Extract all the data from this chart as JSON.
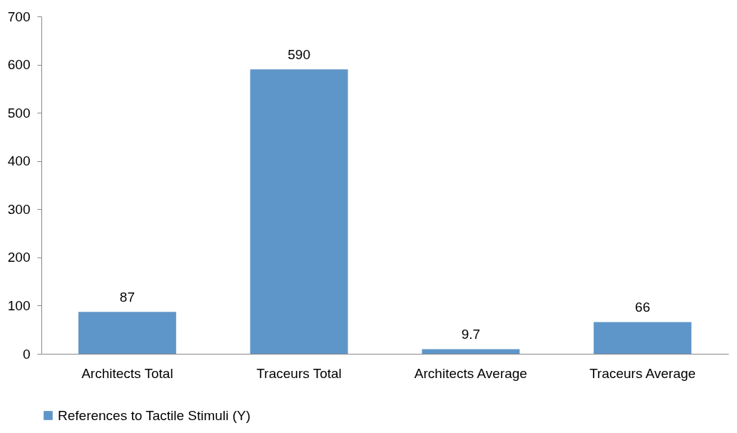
{
  "chart_data": {
    "type": "bar",
    "categories": [
      "Architects Total",
      "Traceurs Total",
      "Architects Average",
      "Traceurs Average"
    ],
    "series": [
      {
        "name": "References to Tactile Stimuli (Y)",
        "color": "#5f96c9",
        "values": [
          87,
          590,
          9.7,
          66
        ]
      }
    ],
    "ylim": [
      0,
      700
    ],
    "yticks": [
      0,
      100,
      200,
      300,
      400,
      500,
      600,
      700
    ],
    "grid": false,
    "legend": "bottom",
    "data_labels": true
  }
}
